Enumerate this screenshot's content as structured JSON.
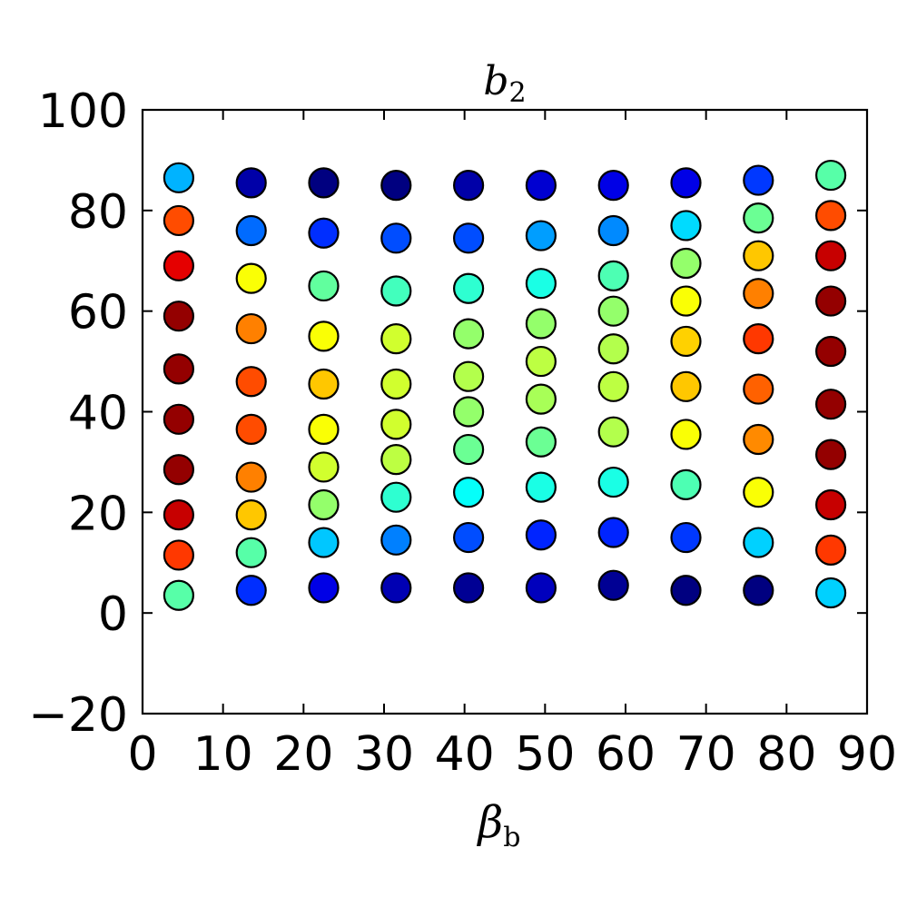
{
  "chart_data": {
    "type": "scatter",
    "title": {
      "main": "b",
      "sub": "2"
    },
    "xlabel": {
      "main": "β",
      "sub": "b"
    },
    "ylabel": "",
    "xlim": [
      0,
      90
    ],
    "ylim": [
      -20,
      100
    ],
    "x_ticks": [
      "0",
      "10",
      "20",
      "30",
      "40",
      "50",
      "60",
      "70",
      "80",
      "90"
    ],
    "y_ticks": [
      "−20",
      "0",
      "20",
      "40",
      "60",
      "80",
      "100"
    ],
    "grid": false,
    "colormap": "jet",
    "columns": [
      {
        "x": 4.5,
        "points": [
          [
            86.5,
            0.3
          ],
          [
            78,
            0.8
          ],
          [
            69,
            0.9
          ],
          [
            59,
            0.98
          ],
          [
            48.5,
            0.98
          ],
          [
            38.5,
            0.98
          ],
          [
            28.5,
            0.98
          ],
          [
            19.5,
            0.93
          ],
          [
            11.5,
            0.82
          ],
          [
            3.5,
            0.46
          ]
        ]
      },
      {
        "x": 13.5,
        "points": [
          [
            85.5,
            0.04
          ],
          [
            76,
            0.23
          ],
          [
            66.5,
            0.62
          ],
          [
            56.5,
            0.75
          ],
          [
            46,
            0.8
          ],
          [
            36.5,
            0.8
          ],
          [
            27,
            0.75
          ],
          [
            19.5,
            0.68
          ],
          [
            12,
            0.46
          ],
          [
            4.5,
            0.17
          ]
        ]
      },
      {
        "x": 22.5,
        "points": [
          [
            85.5,
            0.0
          ],
          [
            75.5,
            0.17
          ],
          [
            65,
            0.47
          ],
          [
            55,
            0.62
          ],
          [
            45.5,
            0.68
          ],
          [
            36.5,
            0.62
          ],
          [
            29,
            0.58
          ],
          [
            21.5,
            0.52
          ],
          [
            14,
            0.32
          ],
          [
            5,
            0.1
          ]
        ]
      },
      {
        "x": 31.5,
        "points": [
          [
            85,
            0.0
          ],
          [
            74.5,
            0.2
          ],
          [
            64,
            0.44
          ],
          [
            54.5,
            0.58
          ],
          [
            45.5,
            0.58
          ],
          [
            37.5,
            0.58
          ],
          [
            30.5,
            0.56
          ],
          [
            23,
            0.42
          ],
          [
            14.5,
            0.25
          ],
          [
            5,
            0.05
          ]
        ]
      },
      {
        "x": 40.5,
        "points": [
          [
            85,
            0.04
          ],
          [
            74.5,
            0.2
          ],
          [
            64.5,
            0.42
          ],
          [
            55.5,
            0.52
          ],
          [
            47,
            0.55
          ],
          [
            40,
            0.52
          ],
          [
            32.5,
            0.48
          ],
          [
            24,
            0.38
          ],
          [
            15,
            0.2
          ],
          [
            5,
            0.02
          ]
        ]
      },
      {
        "x": 49.5,
        "points": [
          [
            85,
            0.08
          ],
          [
            75,
            0.28
          ],
          [
            65.5,
            0.4
          ],
          [
            57.5,
            0.52
          ],
          [
            50,
            0.56
          ],
          [
            42.5,
            0.54
          ],
          [
            34,
            0.48
          ],
          [
            25,
            0.4
          ],
          [
            15.5,
            0.16
          ],
          [
            5,
            0.06
          ]
        ]
      },
      {
        "x": 58.5,
        "points": [
          [
            85,
            0.1
          ],
          [
            76,
            0.26
          ],
          [
            67,
            0.45
          ],
          [
            60,
            0.52
          ],
          [
            52.5,
            0.55
          ],
          [
            45,
            0.56
          ],
          [
            36,
            0.55
          ],
          [
            26,
            0.4
          ],
          [
            16,
            0.16
          ],
          [
            5.5,
            0.02
          ]
        ]
      },
      {
        "x": 67.5,
        "points": [
          [
            85.5,
            0.1
          ],
          [
            77,
            0.34
          ],
          [
            69.5,
            0.52
          ],
          [
            62,
            0.62
          ],
          [
            54,
            0.67
          ],
          [
            45,
            0.68
          ],
          [
            35.5,
            0.62
          ],
          [
            25.5,
            0.45
          ],
          [
            15,
            0.18
          ],
          [
            4.5,
            0.0
          ]
        ]
      },
      {
        "x": 76.5,
        "points": [
          [
            86,
            0.18
          ],
          [
            78.5,
            0.48
          ],
          [
            71,
            0.68
          ],
          [
            63.5,
            0.75
          ],
          [
            54.5,
            0.82
          ],
          [
            44.5,
            0.78
          ],
          [
            34.5,
            0.74
          ],
          [
            24,
            0.62
          ],
          [
            14,
            0.33
          ],
          [
            4.5,
            0.0
          ]
        ]
      },
      {
        "x": 85.5,
        "points": [
          [
            87,
            0.46
          ],
          [
            79,
            0.8
          ],
          [
            71,
            0.93
          ],
          [
            62,
            0.98
          ],
          [
            52,
            0.98
          ],
          [
            41.5,
            0.98
          ],
          [
            31.5,
            0.98
          ],
          [
            21.5,
            0.93
          ],
          [
            12.5,
            0.82
          ],
          [
            4,
            0.33
          ]
        ]
      }
    ]
  }
}
